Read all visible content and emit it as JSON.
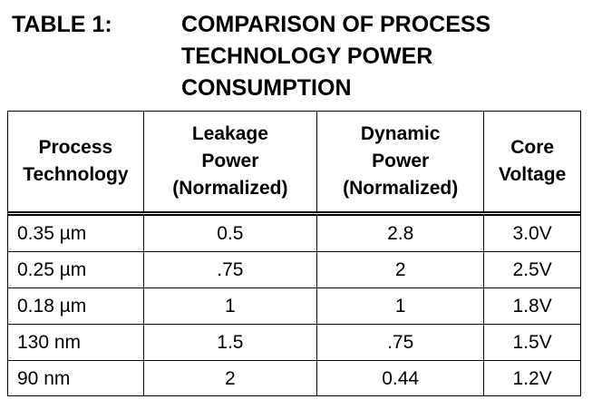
{
  "caption": {
    "label": "TABLE 1:",
    "title": "COMPARISON OF PROCESS\nTECHNOLOGY POWER\nCONSUMPTION"
  },
  "table": {
    "headers": [
      "Process\nTechnology",
      "Leakage\nPower\n(Normalized)",
      "Dynamic\nPower\n(Normalized)",
      "Core\nVoltage"
    ],
    "rows": [
      [
        "0.35 µm",
        "0.5",
        "2.8",
        "3.0V"
      ],
      [
        "0.25 µm",
        ".75",
        "2",
        "2.5V"
      ],
      [
        "0.18 µm",
        "1",
        "1",
        "1.8V"
      ],
      [
        "130 nm",
        "1.5",
        ".75",
        "1.5V"
      ],
      [
        "90 nm",
        "2",
        "0.44",
        "1.2V"
      ]
    ]
  }
}
